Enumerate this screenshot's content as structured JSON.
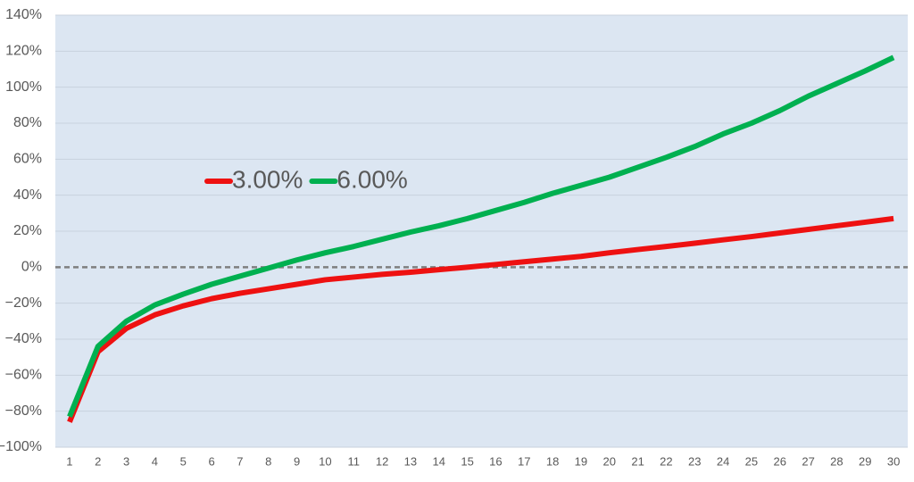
{
  "chart_data": {
    "type": "line",
    "categories": [
      1,
      2,
      3,
      4,
      5,
      6,
      7,
      8,
      9,
      10,
      11,
      12,
      13,
      14,
      15,
      16,
      17,
      18,
      19,
      20,
      21,
      22,
      23,
      24,
      25,
      26,
      27,
      28,
      29,
      30
    ],
    "series": [
      {
        "name": "3.00%",
        "color": "#ee1111",
        "values": [
          -86,
          -47,
          -34,
          -26.5,
          -21.5,
          -17.5,
          -14.5,
          -12,
          -9.5,
          -7,
          -5.5,
          -4,
          -2.8,
          -1.4,
          0,
          1.5,
          3,
          4.5,
          6,
          8,
          9.8,
          11.5,
          13.3,
          15.2,
          17,
          19,
          21,
          23,
          25,
          27
        ]
      },
      {
        "name": "6.00%",
        "color": "#00b050",
        "values": [
          -83,
          -44,
          -30,
          -21,
          -15,
          -9.5,
          -5,
          -0.5,
          4,
          8,
          11.5,
          15.5,
          19.5,
          23,
          27,
          31.5,
          36,
          41,
          45.5,
          50,
          55.5,
          61,
          67,
          74,
          80,
          87,
          95,
          102,
          109,
          116.5
        ]
      }
    ],
    "ylim": [
      -100,
      140
    ],
    "yticks": [
      {
        "value": -100,
        "label": "−100%"
      },
      {
        "value": -80,
        "label": "−80%"
      },
      {
        "value": -60,
        "label": "−60%"
      },
      {
        "value": -40,
        "label": "−40%"
      },
      {
        "value": -20,
        "label": "−20%"
      },
      {
        "value": 0,
        "label": "0%"
      },
      {
        "value": 20,
        "label": "20%"
      },
      {
        "value": 40,
        "label": "40%"
      },
      {
        "value": 60,
        "label": "60%"
      },
      {
        "value": 80,
        "label": "80%"
      },
      {
        "value": 100,
        "label": "100%"
      },
      {
        "value": 120,
        "label": "120%"
      },
      {
        "value": 140,
        "label": "140%"
      }
    ],
    "grid": true,
    "legend": "center-left"
  }
}
